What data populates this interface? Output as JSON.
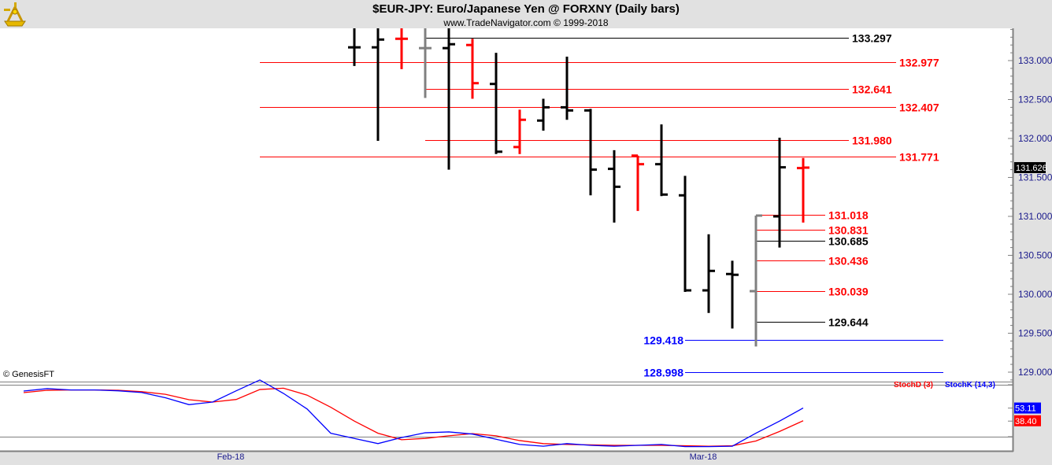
{
  "header": {
    "title": "$EUR-JPY:  Euro/Japanese Yen @ FORXNY  (Daily bars)",
    "subtitle": "www.TradeNavigator.com © 1999-2018",
    "logo": "sextant-logo"
  },
  "copyright": "© GenesisFT",
  "colors": {
    "up": "#000000",
    "down": "#ff0000",
    "neutral": "#808080",
    "stoch_k": "#0000ff",
    "stoch_d": "#ff0000",
    "axis_text": "#1a1a8c"
  },
  "chart_data": [
    {
      "type": "ohlc",
      "title": "$EUR-JPY: Euro/Japanese Yen @ FORXNY (Daily bars)",
      "ylim": [
        128.75,
        133.45
      ],
      "yticks": [
        "133.000",
        "132.500",
        "132.000",
        "131.500",
        "131.000",
        "130.500",
        "130.000",
        "129.500",
        "129.000"
      ],
      "ytick_values": [
        133,
        132.5,
        132,
        131.5,
        131,
        130.5,
        130,
        129.5,
        129
      ],
      "xticks": [
        {
          "label": "Feb-18",
          "bar": 9
        },
        {
          "label": "Mar-18",
          "bar": 29
        }
      ],
      "last_price": "131.626",
      "bars": [
        {
          "bar": 14,
          "o": 133.17,
          "h": 133.6,
          "l": 132.93,
          "c": 133.17,
          "color": "up"
        },
        {
          "bar": 15,
          "o": 133.17,
          "h": 133.6,
          "l": 131.97,
          "c": 133.27,
          "color": "up"
        },
        {
          "bar": 16,
          "o": 133.28,
          "h": 133.6,
          "l": 132.89,
          "c": 133.28,
          "color": "down"
        },
        {
          "bar": 17,
          "o": 133.16,
          "h": 133.6,
          "l": 132.52,
          "c": 133.16,
          "color": "neutral"
        },
        {
          "bar": 18,
          "o": 133.16,
          "h": 133.6,
          "l": 131.6,
          "c": 133.21,
          "color": "up"
        },
        {
          "bar": 19,
          "o": 133.2,
          "h": 133.28,
          "l": 132.51,
          "c": 132.71,
          "color": "down"
        },
        {
          "bar": 20,
          "o": 132.7,
          "h": 133.1,
          "l": 131.8,
          "c": 131.83,
          "color": "up"
        },
        {
          "bar": 21,
          "o": 131.89,
          "h": 132.37,
          "l": 131.8,
          "c": 132.24,
          "color": "down"
        },
        {
          "bar": 22,
          "o": 132.23,
          "h": 132.51,
          "l": 132.1,
          "c": 132.4,
          "color": "up"
        },
        {
          "bar": 23,
          "o": 132.4,
          "h": 133.05,
          "l": 132.24,
          "c": 132.36,
          "color": "up"
        },
        {
          "bar": 24,
          "o": 132.36,
          "h": 132.38,
          "l": 131.27,
          "c": 131.6,
          "color": "up"
        },
        {
          "bar": 25,
          "o": 131.61,
          "h": 131.85,
          "l": 130.92,
          "c": 131.38,
          "color": "up"
        },
        {
          "bar": 26,
          "o": 131.78,
          "h": 131.78,
          "l": 131.07,
          "c": 131.67,
          "color": "down"
        },
        {
          "bar": 27,
          "o": 131.67,
          "h": 132.18,
          "l": 131.26,
          "c": 131.28,
          "color": "up"
        },
        {
          "bar": 28,
          "o": 131.27,
          "h": 131.52,
          "l": 130.03,
          "c": 130.05,
          "color": "up"
        },
        {
          "bar": 29,
          "o": 130.05,
          "h": 130.77,
          "l": 129.76,
          "c": 130.3,
          "color": "up"
        },
        {
          "bar": 30,
          "o": 130.26,
          "h": 130.43,
          "l": 129.56,
          "c": 130.25,
          "color": "up"
        },
        {
          "bar": 31,
          "o": 130.04,
          "h": 131.01,
          "l": 129.33,
          "c": 131.01,
          "color": "neutral"
        },
        {
          "bar": 32,
          "o": 131.0,
          "h": 132.01,
          "l": 130.6,
          "c": 131.63,
          "color": "up"
        },
        {
          "bar": 33,
          "o": 131.62,
          "h": 131.75,
          "l": 130.92,
          "c": 131.626,
          "color": "down"
        }
      ],
      "levels": [
        {
          "value": "133.297",
          "color": "#000000"
        },
        {
          "value": "132.977",
          "color": "#ff0000"
        },
        {
          "value": "132.641",
          "color": "#ff0000"
        },
        {
          "value": "132.407",
          "color": "#ff0000"
        },
        {
          "value": "131.980",
          "color": "#ff0000"
        },
        {
          "value": "131.771",
          "color": "#ff0000"
        },
        {
          "value": "131.018",
          "color": "#ff0000"
        },
        {
          "value": "130.831",
          "color": "#ff0000"
        },
        {
          "value": "130.685",
          "color": "#000000"
        },
        {
          "value": "130.436",
          "color": "#ff0000"
        },
        {
          "value": "130.039",
          "color": "#ff0000"
        },
        {
          "value": "129.644",
          "color": "#000000"
        },
        {
          "value": "129.418",
          "color": "#0000ff"
        },
        {
          "value": "128.998",
          "color": "#0000ff"
        }
      ]
    },
    {
      "type": "line",
      "ylim": [
        0,
        100
      ],
      "reference_lines": [
        20,
        80
      ],
      "legend": "top-right",
      "series": [
        {
          "name": "StochD (3)",
          "color": "#ff0000",
          "last": "38.40",
          "values": [
            70.9,
            73.6,
            74,
            74,
            73.6,
            72,
            69,
            62.7,
            60,
            63,
            74.5,
            76,
            68,
            54,
            38,
            24,
            16.5,
            18,
            21,
            23.5,
            21,
            15.5,
            12,
            11,
            10.5,
            10,
            10,
            10,
            9.5,
            9,
            9.5,
            15,
            26,
            38.4
          ]
        },
        {
          "name": "StochK (14,3)",
          "color": "#0000ff",
          "last": "53.11",
          "values": [
            72.7,
            75.5,
            74,
            74,
            73,
            71,
            65,
            57,
            60,
            73,
            85.5,
            70,
            52,
            24,
            18,
            12,
            19,
            24.5,
            25.5,
            23,
            17,
            11,
            9,
            12,
            10,
            9,
            10,
            11,
            8.5,
            8.5,
            9,
            24,
            38,
            53.11
          ]
        }
      ]
    }
  ]
}
